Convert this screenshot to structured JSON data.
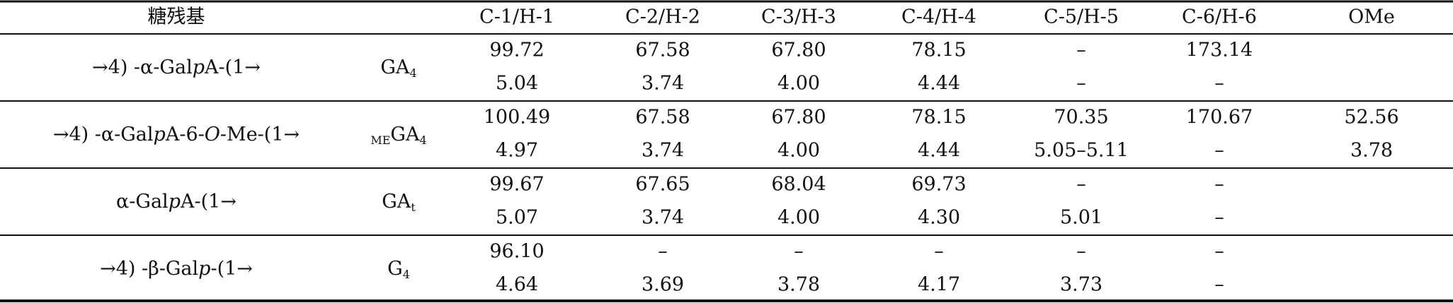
{
  "header": {
    "residue": "糖残基",
    "columns": [
      "C-1/H-1",
      "C-2/H-2",
      "C-3/H-3",
      "C-4/H-4",
      "C-5/H-5",
      "C-6/H-6",
      "OMe"
    ]
  },
  "rows": [
    {
      "residue": [
        "→4) -α-Gal",
        "p",
        "A-(1→"
      ],
      "label": {
        "base": "GA",
        "subscript": "4"
      },
      "c": [
        "99.72",
        "67.58",
        "67.80",
        "78.15",
        "–",
        "173.14",
        null
      ],
      "h": [
        "5.04",
        "3.74",
        "4.00",
        "4.44",
        "–",
        "–",
        null
      ]
    },
    {
      "residue": [
        "→4) -α-Gal",
        "p",
        "A-6-",
        "O",
        "-Me-(1→"
      ],
      "label": {
        "prefix": "ME",
        "base": "GA",
        "subscript": "4"
      },
      "c": [
        "100.49",
        "67.58",
        "67.80",
        "78.15",
        "70.35",
        "170.67",
        "52.56"
      ],
      "h": [
        "4.97",
        "3.74",
        "4.00",
        "4.44",
        "5.05–5.11",
        "–",
        "3.78"
      ]
    },
    {
      "residue": [
        "α-Gal",
        "p",
        "A-(1→"
      ],
      "label": {
        "base": "GA",
        "subscript": "t"
      },
      "c": [
        "99.67",
        "67.65",
        "68.04",
        "69.73",
        "–",
        "–",
        null
      ],
      "h": [
        "5.07",
        "3.74",
        "4.00",
        "4.30",
        "5.01",
        "–",
        null
      ]
    },
    {
      "residue": [
        "→4) -β-Gal",
        "p",
        "-(1→"
      ],
      "label": {
        "base": "G",
        "subscript": "4"
      },
      "c": [
        "96.10",
        "–",
        "–",
        "–",
        "–",
        "–",
        null
      ],
      "h": [
        "4.64",
        "3.69",
        "3.78",
        "4.17",
        "3.73",
        "–",
        null
      ]
    }
  ]
}
